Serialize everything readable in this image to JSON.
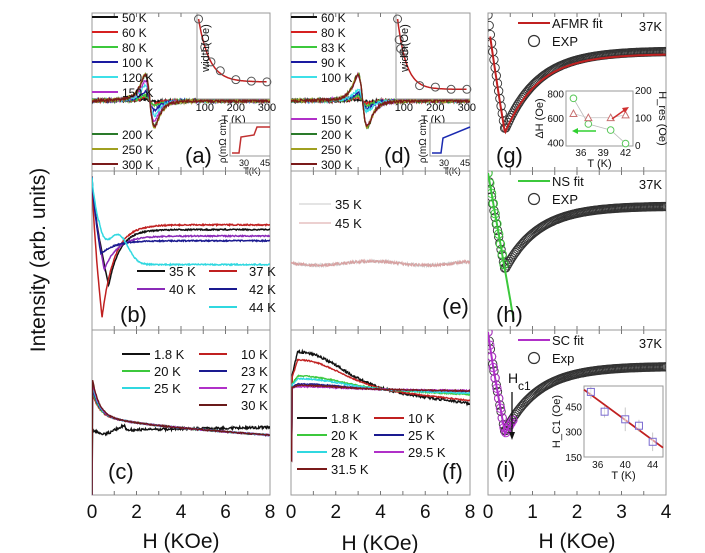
{
  "figure": {
    "ylabel": "Intensity (arb. units)",
    "xlabel": "H (KOe)"
  },
  "chart_data": [
    {
      "id": "a",
      "type": "line",
      "panel_label": "(a)",
      "xlim": [
        0,
        8
      ],
      "x_ticks": [],
      "legend_top": [
        {
          "name": "50 K",
          "color": "#111111"
        },
        {
          "name": "60 K",
          "color": "#d62020"
        },
        {
          "name": "80 K",
          "color": "#3cc83c"
        },
        {
          "name": "100 K",
          "color": "#1a1aa0"
        },
        {
          "name": "120 K",
          "color": "#3ee0e8"
        },
        {
          "name": "150 K",
          "color": "#b030c8"
        }
      ],
      "legend_bottom": [
        {
          "name": "200 K",
          "color": "#2a7a2a"
        },
        {
          "name": "250 K",
          "color": "#a0a020"
        },
        {
          "name": "300 K",
          "color": "#7a1a1a"
        }
      ],
      "series_shape": "derivative-resonance",
      "center": 2.6,
      "amplitudes": [
        0.05,
        0.12,
        0.2,
        0.35,
        0.55,
        0.75,
        0.95,
        1.0,
        0.97
      ],
      "inset_width": {
        "xlabel": "T (K)",
        "ylabel": "width(Oe)",
        "x_ticks": [
          100,
          200,
          300
        ],
        "xlim": [
          75,
          310
        ],
        "points": [
          [
            80,
            1.0
          ],
          [
            100,
            0.62
          ],
          [
            120,
            0.42
          ],
          [
            150,
            0.3
          ],
          [
            200,
            0.18
          ],
          [
            250,
            0.16
          ],
          [
            300,
            0.15
          ]
        ]
      },
      "inset_rho": {
        "xlabel": "T(K)",
        "ylabel": "ρ(mΩ cm)",
        "x_ticks": [
          30,
          45
        ],
        "color": "#c03030",
        "style": "two-step"
      }
    },
    {
      "id": "b",
      "type": "line",
      "panel_label": "(b)",
      "xlim": [
        0,
        8
      ],
      "legend": [
        {
          "name": "35 K",
          "color": "#111111"
        },
        {
          "name": "37 K",
          "color": "#c02020"
        },
        {
          "name": "40 K",
          "color": "#8a2ab8"
        },
        {
          "name": "42 K",
          "color": "#1a1a90"
        },
        {
          "name": "44 K",
          "color": "#30d8e0"
        }
      ],
      "minima": [
        [
          0.75,
          0.72
        ],
        [
          0.45,
          0.92
        ],
        [
          0.55,
          0.62
        ],
        [
          0.4,
          0.52
        ],
        [
          0.3,
          0.32
        ]
      ],
      "plateau": [
        0.18,
        0.15,
        0.22,
        0.25,
        0.4
      ]
    },
    {
      "id": "c",
      "type": "line",
      "panel_label": "(c)",
      "xlim": [
        0,
        8
      ],
      "x_ticks": [
        0,
        2,
        4,
        6,
        8
      ],
      "legend": [
        {
          "name": "1.8 K",
          "color": "#111111"
        },
        {
          "name": "10 K",
          "color": "#c02020"
        },
        {
          "name": "20 K",
          "color": "#3cc83c"
        },
        {
          "name": "23 K",
          "color": "#1a1a90"
        },
        {
          "name": "25 K",
          "color": "#30d8e0"
        },
        {
          "name": "27 K",
          "color": "#b030c8"
        },
        {
          "name": "30 K",
          "color": "#6a1a1a"
        }
      ]
    },
    {
      "id": "d",
      "type": "line",
      "panel_label": "(d)",
      "xlim": [
        0,
        8
      ],
      "legend_top": [
        {
          "name": "60 K",
          "color": "#111111"
        },
        {
          "name": "80 K",
          "color": "#d62020"
        },
        {
          "name": "83 K",
          "color": "#3cc83c"
        },
        {
          "name": "90 K",
          "color": "#1a1aa0"
        },
        {
          "name": "100 K",
          "color": "#3ee0e8"
        }
      ],
      "legend_bottom": [
        {
          "name": "150 K",
          "color": "#b030c8"
        },
        {
          "name": "200 K",
          "color": "#2a7a2a"
        },
        {
          "name": "250 K",
          "color": "#a0a020"
        },
        {
          "name": "300 K",
          "color": "#7a1a1a"
        }
      ],
      "series_shape": "derivative-resonance",
      "center": 3.2,
      "amplitudes": [
        0.03,
        0.12,
        0.2,
        0.3,
        0.4,
        0.95,
        1.0,
        0.98,
        0.96
      ],
      "inset_width": {
        "xlabel": "T (K)",
        "ylabel": "width(Oe)",
        "x_ticks": [
          100,
          200,
          300
        ],
        "xlim": [
          75,
          310
        ],
        "points": [
          [
            80,
            1.0
          ],
          [
            85,
            0.72
          ],
          [
            90,
            0.6
          ],
          [
            100,
            0.55
          ],
          [
            150,
            0.1
          ],
          [
            200,
            0.08
          ],
          [
            250,
            0.05
          ],
          [
            300,
            0.05
          ]
        ]
      },
      "inset_rho": {
        "xlabel": "T(K)",
        "ylabel": "ρ(mΩ cm)",
        "x_ticks": [
          30,
          45
        ],
        "color": "#1a2ab0",
        "style": "one-step"
      }
    },
    {
      "id": "e",
      "type": "line",
      "panel_label": "(e)",
      "xlim": [
        0,
        8
      ],
      "legend": [
        {
          "name": "35 K",
          "color": "#c8c8c8"
        },
        {
          "name": "45 K",
          "color": "#d8a0a0"
        }
      ],
      "level": 0.58
    },
    {
      "id": "f",
      "type": "line",
      "panel_label": "(f)",
      "xlim": [
        0,
        8
      ],
      "x_ticks": [
        0,
        2,
        4,
        6,
        8
      ],
      "legend": [
        {
          "name": "1.8 K",
          "color": "#111111"
        },
        {
          "name": "10 K",
          "color": "#c02020"
        },
        {
          "name": "20 K",
          "color": "#3cc83c"
        },
        {
          "name": "25 K",
          "color": "#1a1a90"
        },
        {
          "name": "28 K",
          "color": "#30d8e0"
        },
        {
          "name": "29.5 K",
          "color": "#b030c8"
        },
        {
          "name": "31.5 K",
          "color": "#7a1a1a"
        }
      ]
    },
    {
      "id": "g",
      "type": "scatter",
      "panel_label": "(g)",
      "xlim": [
        0,
        4
      ],
      "temperature": "37K",
      "legend": [
        {
          "name": "AFMR fit",
          "color": "#c02020",
          "kind": "line"
        },
        {
          "name": "EXP",
          "color": "#333333",
          "kind": "circle"
        }
      ],
      "min_x": 0.38,
      "inset": {
        "xlabel": "T (K)",
        "ylabel_left": "ΔH (Oe)",
        "ylabel_right": "H_res (Oe)",
        "x_ticks": [
          36,
          39,
          42
        ],
        "xlim": [
          34,
          43
        ],
        "yleft_ticks": [
          400,
          600,
          800
        ],
        "yleft_lim": [
          380,
          830
        ],
        "yright_ticks": [
          0,
          100,
          200
        ],
        "yright_lim": [
          0,
          200
        ],
        "deltaH": {
          "color": "#5ac85a",
          "points": [
            [
              35,
              770
            ],
            [
              37,
              560
            ],
            [
              40,
              510
            ],
            [
              42,
              400
            ]
          ]
        },
        "Hres": {
          "color": "#c87070",
          "points": [
            [
              35,
              118
            ],
            [
              37,
              103
            ],
            [
              40,
              103
            ],
            [
              42,
              113
            ]
          ]
        }
      }
    },
    {
      "id": "h",
      "type": "scatter",
      "panel_label": "(h)",
      "xlim": [
        0,
        4
      ],
      "temperature": "37K",
      "legend": [
        {
          "name": "NS fit",
          "color": "#3cc83c",
          "kind": "line"
        },
        {
          "name": "EXP",
          "color": "#333333",
          "kind": "circle"
        }
      ],
      "min_x": 0.38
    },
    {
      "id": "i",
      "type": "scatter",
      "panel_label": "(i)",
      "xlim": [
        0,
        4
      ],
      "x_ticks": [
        0,
        1,
        2,
        3,
        4
      ],
      "temperature": "37K",
      "legend": [
        {
          "name": "SC fit",
          "color": "#b030c8",
          "kind": "line"
        },
        {
          "name": "Exp",
          "color": "#333333",
          "kind": "circle"
        }
      ],
      "annotation": "H_c1",
      "min_x": 0.38,
      "inset": {
        "xlabel": "T (K)",
        "ylabel": "H_C1 (Oe)",
        "x_ticks": [
          36,
          40,
          44
        ],
        "xlim": [
          34,
          45.5
        ],
        "y_ticks": [
          150,
          300,
          450
        ],
        "ylim": [
          150,
          570
        ],
        "points": [
          [
            35,
            535,
            40
          ],
          [
            37,
            418,
            35
          ],
          [
            40,
            373,
            70
          ],
          [
            42,
            335,
            35
          ],
          [
            44,
            240,
            55
          ]
        ],
        "fit": [
          [
            34,
            548
          ],
          [
            45.5,
            205
          ]
        ],
        "color": "#7a6ad0",
        "fit_color": "#c02020"
      }
    }
  ]
}
